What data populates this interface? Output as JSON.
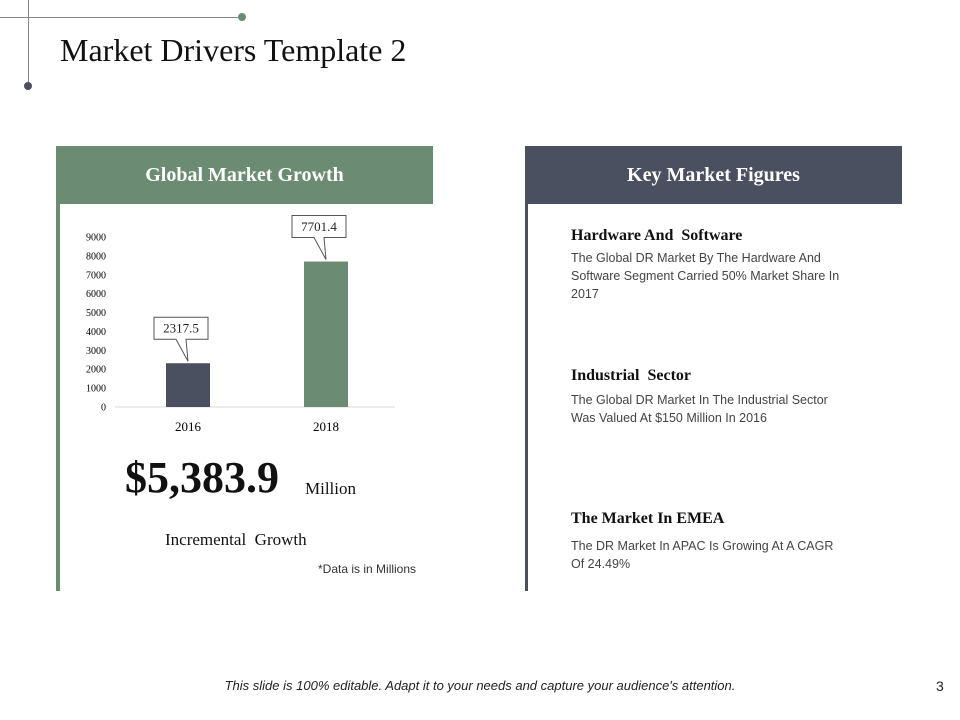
{
  "slide": {
    "title": "Market Drivers Template 2",
    "footer": "This slide is 100% editable. Adapt it to your needs and capture your audience's attention.",
    "page_number": "3"
  },
  "left_panel": {
    "header": "Global Market Growth",
    "value": "$5,383.9",
    "unit": "Million",
    "caption": "Incremental  Growth",
    "note": "*Data is in Millions"
  },
  "chart_data": {
    "type": "bar",
    "categories": [
      "2016",
      "2018"
    ],
    "values": [
      2317.5,
      7701.4
    ],
    "data_labels": [
      "2317.5",
      "7701.4"
    ],
    "y_ticks": [
      "9000",
      "8000",
      "7000",
      "6000",
      "5000",
      "4000",
      "3000",
      "2000",
      "1000",
      "0"
    ],
    "ylim": [
      0,
      9000
    ],
    "colors": [
      "#4b5060",
      "#6b8c72"
    ],
    "grid": false
  },
  "right_panel": {
    "header": "Key Market Figures",
    "figures": [
      {
        "title": "Hardware And  Software",
        "desc": "The Global DR Market By The Hardware And Software Segment Carried 50% Market Share In 2017"
      },
      {
        "title": "Industrial  Sector",
        "desc": "The Global DR Market In The Industrial Sector Was Valued At $150 Million In 2016"
      },
      {
        "title": "The Market In EMEA",
        "desc": "The DR Market In APAC Is Growing At A CAGR Of 24.49%"
      }
    ]
  },
  "colors": {
    "green": "#6b8c72",
    "slate": "#4b5060"
  }
}
